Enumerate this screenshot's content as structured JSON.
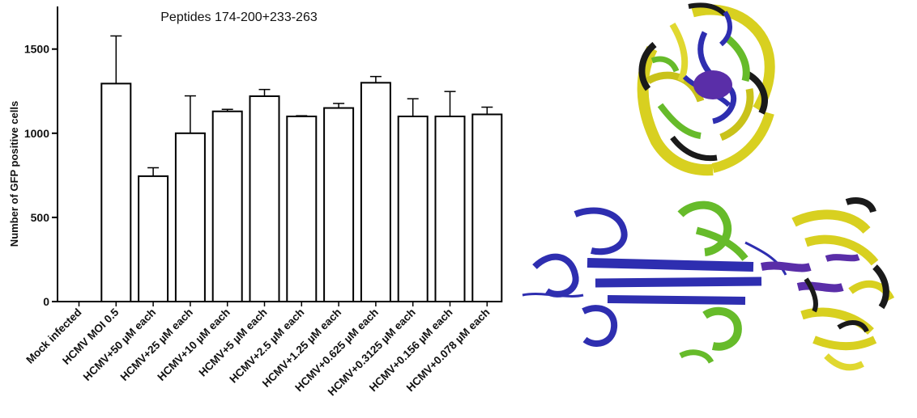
{
  "chart_data": {
    "type": "bar",
    "title": "Peptides 174-200+233-263",
    "xlabel": "",
    "ylabel": "Number of GFP positive cells",
    "ylim": [
      0,
      1750
    ],
    "yticks": [
      0,
      500,
      1000,
      1500
    ],
    "categories": [
      "Mock infected",
      "HCMV MOI 0.5",
      "HCMV+50 µM each",
      "HCMV+25 µM each",
      "HCMV+10 µM each",
      "HCMV+5 µM each",
      "HCMV+2.5 µM each",
      "HCMV+1.25 µM each",
      "HCMV+0.625 µM each",
      "HCMV+0.3125 µM each",
      "HCMV+0.156 µM each",
      "HCMV+0.078 µM each"
    ],
    "values": [
      0,
      1295,
      745,
      1000,
      1130,
      1220,
      1100,
      1150,
      1300,
      1100,
      1100,
      1112
    ],
    "errors": [
      0,
      283,
      50,
      222,
      12,
      40,
      4,
      27,
      37,
      105,
      148,
      43
    ],
    "grid": false,
    "bar_fill": "#ffffff",
    "bar_stroke": "#000000"
  },
  "structure_colors": {
    "chain_a": "#2e2eb0",
    "chain_b": "#66bb2a",
    "chain_c": "#d8d020",
    "accent": "#1a1a1a",
    "linker": "#5a2ea8"
  }
}
